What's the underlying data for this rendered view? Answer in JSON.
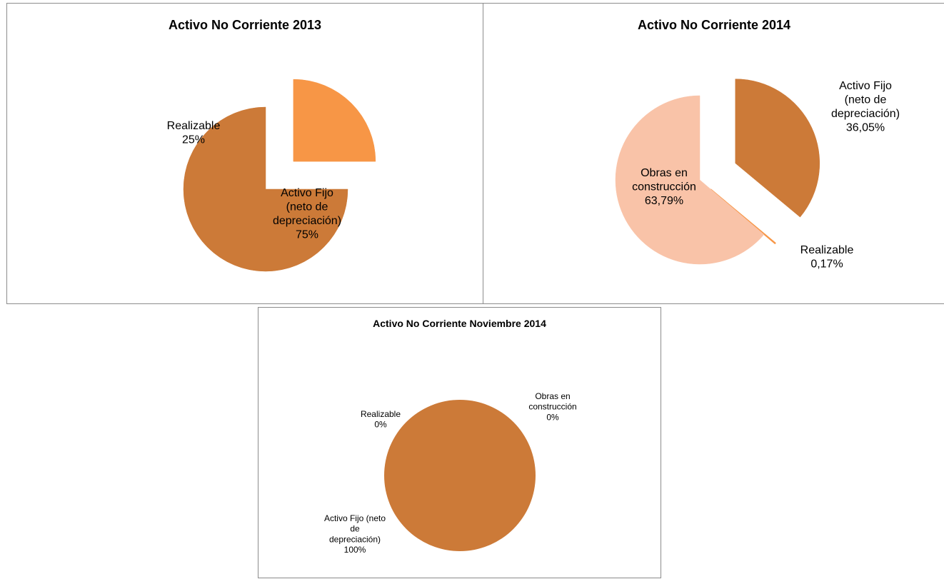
{
  "chart_data": [
    {
      "type": "pie",
      "title": "Activo No Corriente 2013",
      "slices": [
        {
          "label": [
            "Realizable"
          ],
          "percent": "25%",
          "value": 25,
          "color": "#f79646"
        },
        {
          "label": [
            "Activo Fijo",
            "(neto de",
            "depreciación)"
          ],
          "percent": "75%",
          "value": 75,
          "color": "#cc7a38"
        }
      ],
      "exploded": true
    },
    {
      "type": "pie",
      "title": "Activo No Corriente 2014",
      "slices": [
        {
          "label": [
            "Activo Fijo",
            "(neto de",
            "depreciación)"
          ],
          "percent": "36,05%",
          "value": 36.05,
          "color": "#cc7a38"
        },
        {
          "label": [
            "Realizable"
          ],
          "percent": "0,17%",
          "value": 0.17,
          "color": "#f79646"
        },
        {
          "label": [
            "Obras en",
            "construcción"
          ],
          "percent": "63,79%",
          "value": 63.79,
          "color": "#f9c3a8"
        }
      ],
      "exploded": true
    },
    {
      "type": "pie",
      "title": "Activo No Corriente  Noviembre 2014",
      "slices": [
        {
          "label": [
            "Obras en",
            "construcción"
          ],
          "percent": "0%",
          "value": 0,
          "color": "#f9c3a8"
        },
        {
          "label": [
            "Activo Fijo (neto",
            "de",
            "depreciación)"
          ],
          "percent": "100%",
          "value": 100,
          "color": "#cc7a38"
        },
        {
          "label": [
            "Realizable"
          ],
          "percent": "0%",
          "value": 0,
          "color": "#f79646"
        }
      ],
      "exploded": false
    }
  ]
}
